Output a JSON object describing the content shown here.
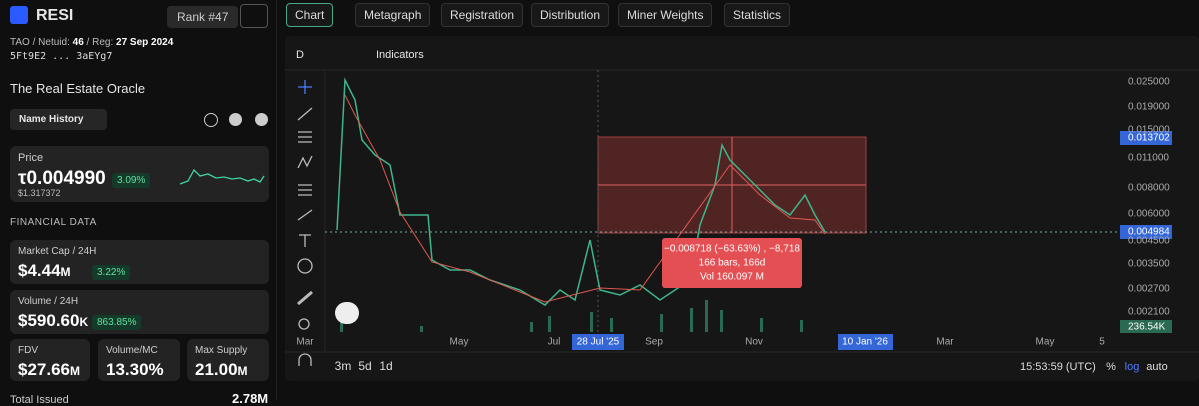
{
  "header": {
    "name": "RESI",
    "rank": "Rank #47"
  },
  "meta": {
    "network": "TAO",
    "netuid_label": "Netuid:",
    "netuid": "46",
    "reg_label": "Reg:",
    "reg": "27 Sep 2024",
    "address": "5Ft9E2 ... 3aEYg7"
  },
  "description": "The Real Estate Oracle",
  "name_history": "Name History",
  "price": {
    "label": "Price",
    "symbol": "τ",
    "value": "0.004990",
    "usd": "$1.317372",
    "change": "3.09%"
  },
  "section": "FINANCIAL DATA",
  "cards": [
    {
      "label": "Market Cap / 24H",
      "value": "$4.44",
      "unit": "M",
      "change": "3.22%"
    },
    {
      "label": "Volume / 24H",
      "value": "$590.60",
      "unit": "K",
      "change": "863.85%"
    },
    {
      "label": "FDV",
      "value": "$27.66",
      "unit": "M"
    },
    {
      "label": "Volume/MC",
      "value": "13.30%"
    },
    {
      "label": "Max Supply",
      "value": "21.00",
      "unit": "M"
    }
  ],
  "issued": {
    "label": "Total Issued",
    "value": "2.78M"
  },
  "tabs": [
    "Chart",
    "Metagraph",
    "Registration",
    "Distribution",
    "Miner Weights",
    "Statistics"
  ],
  "toolbar": {
    "interval": "D",
    "indicators": "Indicators"
  },
  "chart": {
    "price_axis": [
      "0.025000",
      "0.019000",
      "0.015000",
      "0.011000",
      "0.008000",
      "0.006000",
      "0.004500",
      "0.003500",
      "0.002700",
      "0.002100"
    ],
    "price_tags": [
      "0.013702",
      "0.004984",
      "236.54K"
    ],
    "time_axis": [
      "Mar",
      "May",
      "Jul",
      "Sep",
      "Nov",
      "Mar",
      "May",
      "5"
    ],
    "time_highlights": [
      "28 Jul '25",
      "10 Jan '26"
    ],
    "measure": [
      "−0.008718 (−63.63%) , −8,718",
      "166 bars, 166d",
      "Vol 160.097 M"
    ]
  },
  "footer": {
    "ranges": [
      "3m",
      "5d",
      "1d"
    ],
    "clock": "15:53:59 (UTC)",
    "options": [
      "%",
      "log",
      "auto"
    ]
  }
}
